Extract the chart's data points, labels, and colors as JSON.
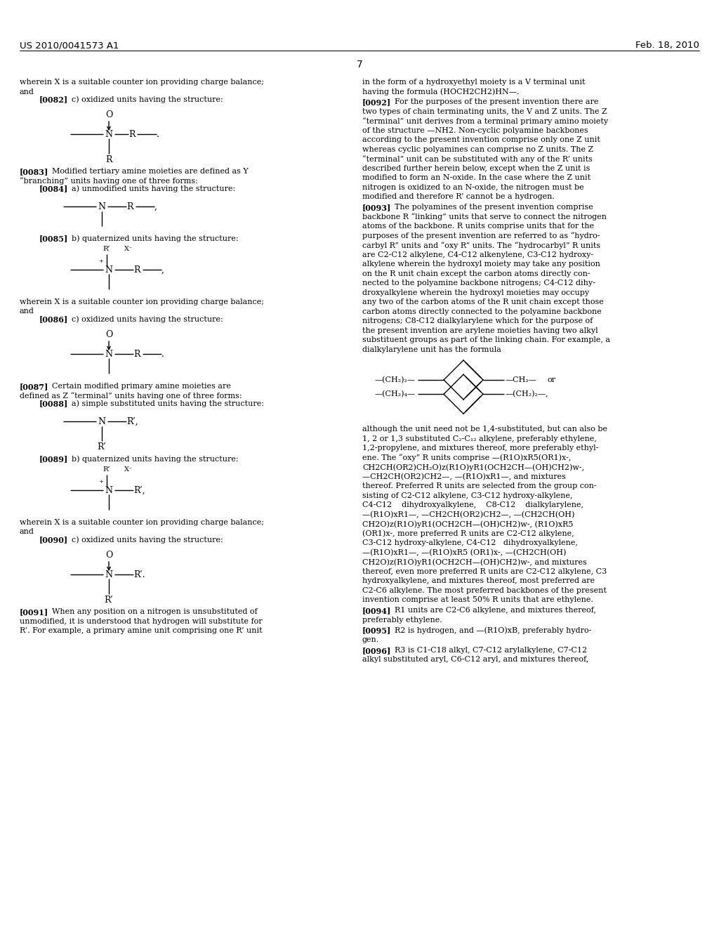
{
  "page_header_left": "US 2010/0041573 A1",
  "page_header_right": "Feb. 18, 2010",
  "page_number": "7",
  "background_color": "#ffffff",
  "text_color": "#000000"
}
